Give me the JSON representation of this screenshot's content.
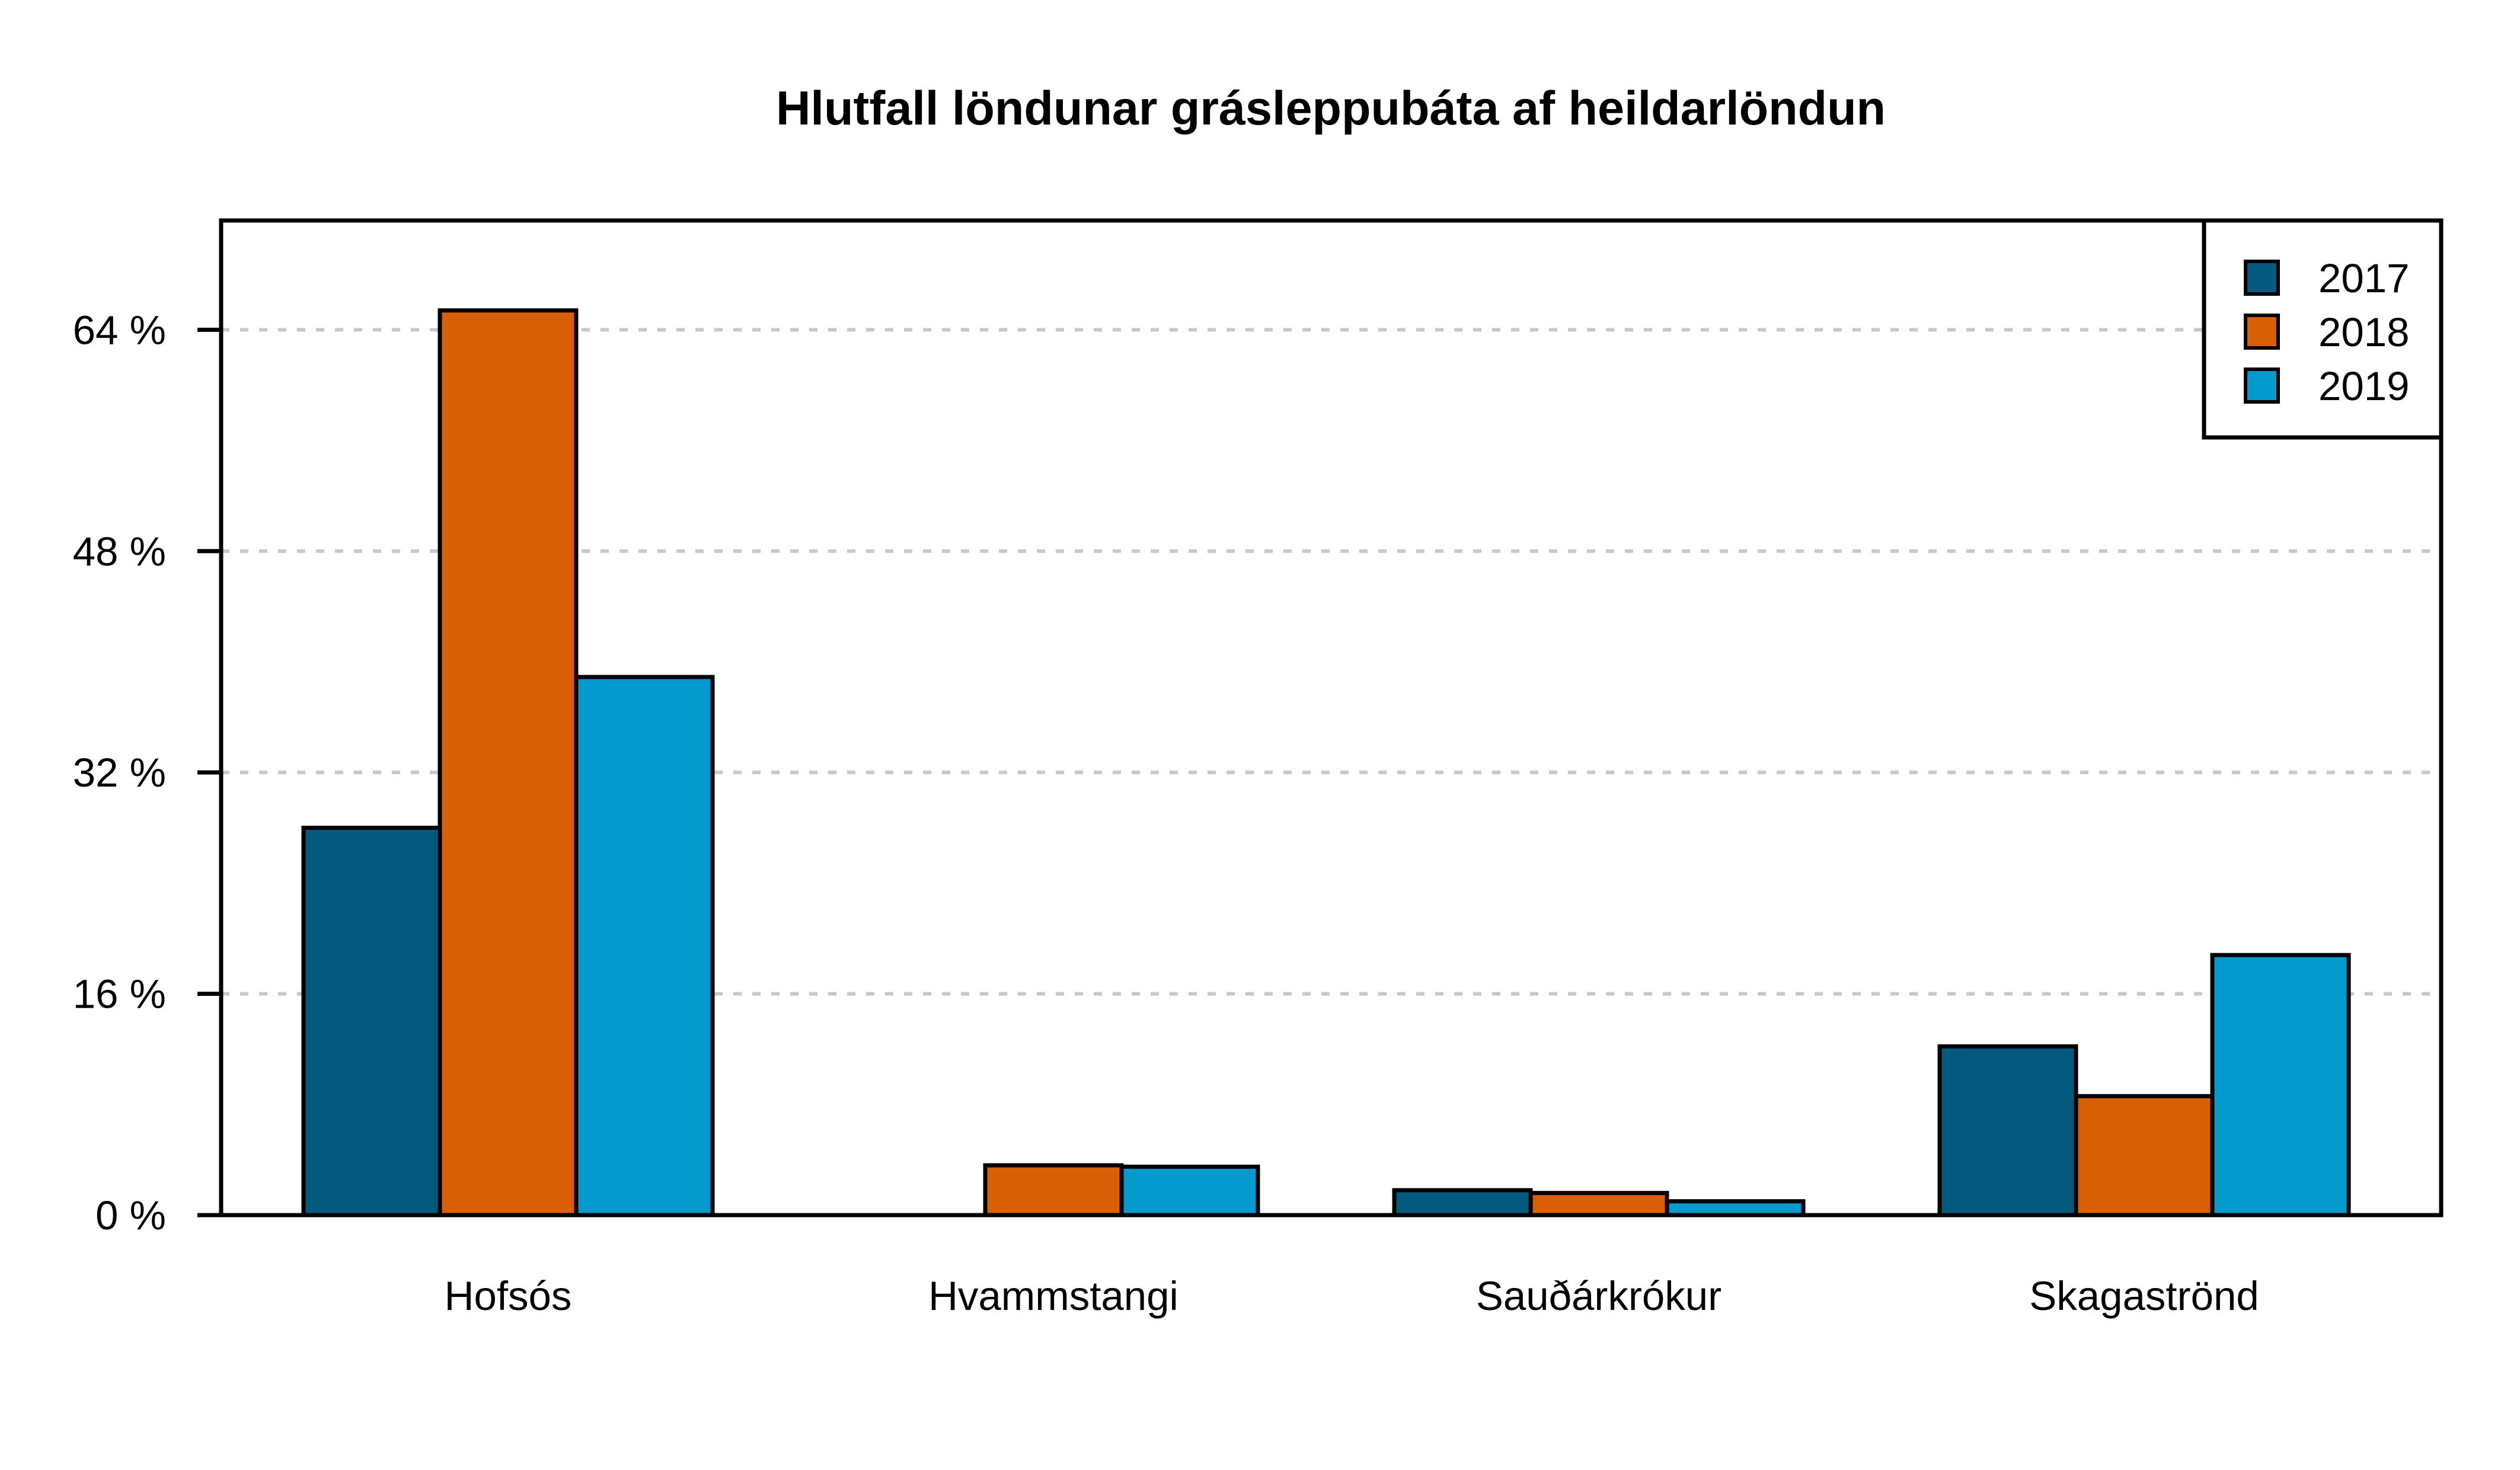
{
  "chart_data": {
    "type": "bar",
    "title": "Hlutfall löndunar grásleppubáta af heildarlöndun",
    "xlabel": "",
    "ylabel": "",
    "categories": [
      "Hofsós",
      "Hvammstangi",
      "Sauðárkrókur",
      "Skagaströnd"
    ],
    "series": [
      {
        "name": "2017",
        "color": "#045A7E",
        "values": [
          28.0,
          0.0,
          1.8,
          12.2
        ]
      },
      {
        "name": "2018",
        "color": "#D95F07",
        "values": [
          65.4,
          3.6,
          1.6,
          8.6
        ]
      },
      {
        "name": "2019",
        "color": "#049ACE",
        "values": [
          38.9,
          3.5,
          1.0,
          18.8
        ]
      }
    ],
    "yticks": [
      0,
      16,
      32,
      48,
      64
    ],
    "ytick_labels": [
      "0 %",
      "16 %",
      "32 %",
      "48 %",
      "64 %"
    ],
    "ylim": [
      0,
      71.9
    ],
    "grid": "horizontal dashed",
    "legend_position": "top-right"
  }
}
